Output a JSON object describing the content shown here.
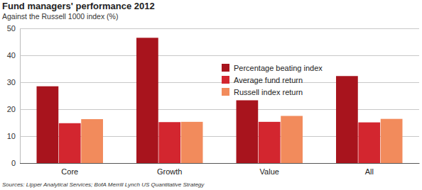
{
  "chart_data": {
    "type": "bar",
    "title": "Fund managers' performance 2012",
    "subtitle": "Against the Russell 1000 index (%)",
    "source": "Sources: Lipper Analytical Services; BofA Merrill Lynch US Quantitative Strategy",
    "categories": [
      "Core",
      "Growth",
      "Value",
      "All"
    ],
    "series": [
      {
        "name": "Percentage beating index",
        "color": "#a8141d",
        "values": [
          28.5,
          46.5,
          23.3,
          32.3
        ]
      },
      {
        "name": "Average fund return",
        "color": "#d3262f",
        "values": [
          14.8,
          15.2,
          15.3,
          15.1
        ]
      },
      {
        "name": "Russell index return",
        "color": "#f28b5c",
        "values": [
          16.3,
          15.3,
          17.5,
          16.4
        ]
      }
    ],
    "ylim": [
      0,
      50
    ],
    "yticks": [
      0,
      10,
      20,
      30,
      40,
      50
    ],
    "grid": true,
    "legend": "upper center"
  }
}
